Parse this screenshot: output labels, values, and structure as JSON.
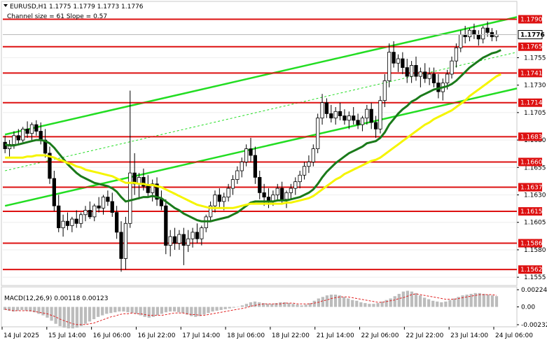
{
  "header": {
    "symbol_line": "EURUSD,H1  1.1775 1.1779 1.1773 1.1776",
    "channel_line": "Channel size = 61 Slope = 0.57"
  },
  "macd": {
    "label": "MACD(12,26,9) 0.00118 0.00123",
    "ticks": [
      {
        "label": "0.00224",
        "value": 0.00224
      },
      {
        "label": "0.00",
        "value": 0.0
      },
      {
        "label": "-0.00232",
        "value": -0.00232
      }
    ],
    "histogram": [
      -0.0004,
      -0.0005,
      -0.0006,
      -0.0005,
      -0.0004,
      -0.0005,
      -0.0006,
      -0.0007,
      -0.0009,
      -0.0011,
      -0.0014,
      -0.0018,
      -0.0022,
      -0.0025,
      -0.0027,
      -0.0028,
      -0.0028,
      -0.0027,
      -0.0025,
      -0.0022,
      -0.0019,
      -0.0016,
      -0.0013,
      -0.0011,
      -0.0009,
      -0.0008,
      -0.0007,
      -0.0006,
      -0.0006,
      -0.0007,
      -0.0008,
      -0.0009,
      -0.0011,
      -0.0013,
      -0.0014,
      -0.0013,
      -0.0011,
      -0.0009,
      -0.0007,
      -0.0006,
      -0.0006,
      -0.0007,
      -0.0008,
      -0.001,
      -0.0012,
      -0.0013,
      -0.0012,
      -0.001,
      -0.0008,
      -0.0006,
      -0.0005,
      -0.0004,
      -0.0003,
      -0.0002,
      -0.0001,
      0.0,
      0.0002,
      0.0004,
      0.0006,
      0.0007,
      0.0006,
      0.0005,
      0.0004,
      0.0004,
      0.0005,
      0.0006,
      0.0006,
      0.0005,
      0.0004,
      0.0003,
      0.0002,
      0.0003,
      0.0005,
      0.0008,
      0.0011,
      0.0013,
      0.0015,
      0.0016,
      0.0016,
      0.0015,
      0.0013,
      0.0011,
      0.0009,
      0.0008,
      0.0006,
      0.0005,
      0.0004,
      0.0004,
      0.0005,
      0.0007,
      0.0009,
      0.0011,
      0.0014,
      0.0017,
      0.002,
      0.0021,
      0.002,
      0.0018,
      0.0015,
      0.0012,
      0.001,
      0.0008,
      0.0007,
      0.0006,
      0.0007,
      0.0009,
      0.0011,
      0.0013,
      0.0015,
      0.0016,
      0.0017,
      0.0018,
      0.0018,
      0.0017,
      0.0016,
      0.0015,
      0.0014
    ],
    "signal": [
      -0.0003,
      -0.0004,
      -0.0005,
      -0.0005,
      -0.0005,
      -0.0005,
      -0.0005,
      -0.0006,
      -0.0007,
      -0.0008,
      -0.0009,
      -0.0011,
      -0.0013,
      -0.0016,
      -0.0018,
      -0.002,
      -0.0022,
      -0.0023,
      -0.0023,
      -0.0023,
      -0.0022,
      -0.0021,
      -0.0019,
      -0.0017,
      -0.0015,
      -0.0013,
      -0.0012,
      -0.001,
      -0.0009,
      -0.0009,
      -0.0008,
      -0.0009,
      -0.0009,
      -0.001,
      -0.0011,
      -0.0011,
      -0.0011,
      -0.0011,
      -0.001,
      -0.0009,
      -0.0008,
      -0.0008,
      -0.0008,
      -0.0009,
      -0.001,
      -0.001,
      -0.0011,
      -0.0011,
      -0.001,
      -0.0009,
      -0.0008,
      -0.0007,
      -0.0006,
      -0.0005,
      -0.0004,
      -0.0003,
      -0.0002,
      -0.0001,
      0.0001,
      0.0002,
      0.0003,
      0.0004,
      0.0004,
      0.0004,
      0.0004,
      0.0004,
      0.0005,
      0.0005,
      0.0005,
      0.0004,
      0.0004,
      0.0004,
      0.0004,
      0.0005,
      0.0006,
      0.0008,
      0.0009,
      0.0011,
      0.0012,
      0.0013,
      0.0013,
      0.0013,
      0.0012,
      0.0011,
      0.001,
      0.0009,
      0.0008,
      0.0007,
      0.0006,
      0.0006,
      0.0007,
      0.0008,
      0.0009,
      0.0011,
      0.0012,
      0.0014,
      0.0016,
      0.0017,
      0.0016,
      0.0015,
      0.0014,
      0.0013,
      0.0012,
      0.0011,
      0.001,
      0.001,
      0.001,
      0.0011,
      0.0012,
      0.0013,
      0.0014,
      0.0015,
      0.0016,
      0.0016,
      0.0016,
      0.0016,
      0.0015
    ]
  },
  "chart_data": {
    "type": "line",
    "title": "EURUSD,H1",
    "ylim": [
      1.155,
      1.1805
    ],
    "y_ticks": [
      "1.1755",
      "1.1730",
      "1.1705",
      "1.1680",
      "1.1655",
      "1.1630",
      "1.1605",
      "1.1580",
      "1.1555"
    ],
    "current_price_label": "1.1776",
    "current_price": 1.1776,
    "levels": [
      {
        "label": "1.1790",
        "value": 1.179
      },
      {
        "label": "1.1765",
        "value": 1.1765
      },
      {
        "label": "1.1741",
        "value": 1.1741
      },
      {
        "label": "1.1714",
        "value": 1.1714
      },
      {
        "label": "1.1683",
        "value": 1.1683
      },
      {
        "label": "1.1660",
        "value": 1.166
      },
      {
        "label": "1.1637",
        "value": 1.1637
      },
      {
        "label": "1.1615",
        "value": 1.1615
      },
      {
        "label": "1.1586",
        "value": 1.1586
      },
      {
        "label": "1.1562",
        "value": 1.1562
      }
    ],
    "x_labels": [
      "14 Jul 2025",
      "15 Jul 14:00",
      "16 Jul 06:00",
      "16 Jul 22:00",
      "17 Jul 14:00",
      "18 Jul 06:00",
      "18 Jul 22:00",
      "21 Jul 14:00",
      "22 Jul 06:00",
      "22 Jul 22:00",
      "23 Jul 14:00",
      "24 Jul 06:00"
    ],
    "channel": [
      {
        "name": "channel-upper",
        "start": [
          0,
          1.1685
        ],
        "end": [
          121,
          1.1792
        ]
      },
      {
        "name": "channel-lower",
        "start": [
          0,
          1.162
        ],
        "end": [
          121,
          1.1727
        ]
      },
      {
        "name": "channel-mid",
        "start": [
          0,
          1.1652
        ],
        "end": [
          121,
          1.176
        ]
      }
    ],
    "candles": [
      [
        1.1678,
        1.1684,
        1.1668,
        1.1672
      ],
      [
        1.1672,
        1.168,
        1.1665,
        1.1676
      ],
      [
        1.1676,
        1.1688,
        1.1672,
        1.1684
      ],
      [
        1.1684,
        1.169,
        1.1676,
        1.168
      ],
      [
        1.168,
        1.1692,
        1.1678,
        1.169
      ],
      [
        1.169,
        1.1697,
        1.1682,
        1.1686
      ],
      [
        1.1686,
        1.1696,
        1.168,
        1.1694
      ],
      [
        1.1694,
        1.1698,
        1.1684,
        1.1688
      ],
      [
        1.1688,
        1.1696,
        1.1676,
        1.168
      ],
      [
        1.168,
        1.169,
        1.1664,
        1.1668
      ],
      [
        1.1668,
        1.1674,
        1.164,
        1.1645
      ],
      [
        1.1645,
        1.1652,
        1.1615,
        1.162
      ],
      [
        1.162,
        1.163,
        1.1596,
        1.16
      ],
      [
        1.16,
        1.1612,
        1.1592,
        1.1606
      ],
      [
        1.1606,
        1.1614,
        1.1598,
        1.1602
      ],
      [
        1.1602,
        1.161,
        1.1596,
        1.1608
      ],
      [
        1.1608,
        1.1616,
        1.16,
        1.1604
      ],
      [
        1.1604,
        1.1614,
        1.16,
        1.1612
      ],
      [
        1.1612,
        1.162,
        1.1606,
        1.1616
      ],
      [
        1.1616,
        1.1624,
        1.1608,
        1.161
      ],
      [
        1.161,
        1.1622,
        1.1606,
        1.162
      ],
      [
        1.162,
        1.1628,
        1.1614,
        1.1618
      ],
      [
        1.1618,
        1.163,
        1.1612,
        1.1628
      ],
      [
        1.1628,
        1.1634,
        1.162,
        1.1624
      ],
      [
        1.1624,
        1.1632,
        1.161,
        1.1614
      ],
      [
        1.1614,
        1.162,
        1.159,
        1.1596
      ],
      [
        1.1596,
        1.1606,
        1.156,
        1.1572
      ],
      [
        1.1572,
        1.161,
        1.1562,
        1.1604
      ],
      [
        1.1604,
        1.1725,
        1.16,
        1.165
      ],
      [
        1.165,
        1.1668,
        1.163,
        1.164
      ],
      [
        1.164,
        1.165,
        1.1626,
        1.1646
      ],
      [
        1.1646,
        1.1654,
        1.1634,
        1.1638
      ],
      [
        1.1638,
        1.1648,
        1.1628,
        1.1632
      ],
      [
        1.1632,
        1.1644,
        1.1624,
        1.164
      ],
      [
        1.164,
        1.1646,
        1.162,
        1.1626
      ],
      [
        1.1626,
        1.1634,
        1.1616,
        1.162
      ],
      [
        1.162,
        1.1626,
        1.1576,
        1.1584
      ],
      [
        1.1584,
        1.1598,
        1.1574,
        1.1592
      ],
      [
        1.1592,
        1.16,
        1.158,
        1.1586
      ],
      [
        1.1586,
        1.1598,
        1.158,
        1.1594
      ],
      [
        1.1594,
        1.16,
        1.1566,
        1.1584
      ],
      [
        1.1584,
        1.1598,
        1.1578,
        1.159
      ],
      [
        1.159,
        1.16,
        1.1582,
        1.1596
      ],
      [
        1.1596,
        1.1604,
        1.1586,
        1.159
      ],
      [
        1.159,
        1.1602,
        1.1584,
        1.16
      ],
      [
        1.16,
        1.1612,
        1.1596,
        1.161
      ],
      [
        1.161,
        1.1624,
        1.1606,
        1.162
      ],
      [
        1.162,
        1.1634,
        1.1614,
        1.163
      ],
      [
        1.163,
        1.1636,
        1.1618,
        1.1624
      ],
      [
        1.1624,
        1.1632,
        1.1616,
        1.1628
      ],
      [
        1.1628,
        1.164,
        1.1624,
        1.1636
      ],
      [
        1.1636,
        1.1648,
        1.163,
        1.1644
      ],
      [
        1.1644,
        1.1656,
        1.164,
        1.1652
      ],
      [
        1.1652,
        1.1664,
        1.1646,
        1.166
      ],
      [
        1.166,
        1.1676,
        1.1656,
        1.1672
      ],
      [
        1.1672,
        1.1682,
        1.166,
        1.1666
      ],
      [
        1.1666,
        1.1674,
        1.164,
        1.1646
      ],
      [
        1.1646,
        1.1652,
        1.1626,
        1.1632
      ],
      [
        1.1632,
        1.164,
        1.162,
        1.1628
      ],
      [
        1.1628,
        1.1636,
        1.1618,
        1.1624
      ],
      [
        1.1624,
        1.1634,
        1.162,
        1.163
      ],
      [
        1.163,
        1.164,
        1.1624,
        1.1636
      ],
      [
        1.1636,
        1.1642,
        1.1622,
        1.1626
      ],
      [
        1.1626,
        1.1634,
        1.1618,
        1.1632
      ],
      [
        1.1632,
        1.164,
        1.1626,
        1.1636
      ],
      [
        1.1636,
        1.1646,
        1.163,
        1.1642
      ],
      [
        1.1642,
        1.1652,
        1.1636,
        1.1648
      ],
      [
        1.1648,
        1.166,
        1.1644,
        1.1656
      ],
      [
        1.1656,
        1.1666,
        1.165,
        1.166
      ],
      [
        1.166,
        1.1676,
        1.1656,
        1.1672
      ],
      [
        1.1672,
        1.1704,
        1.1668,
        1.17
      ],
      [
        1.17,
        1.1722,
        1.1694,
        1.1714
      ],
      [
        1.1714,
        1.1718,
        1.17,
        1.1704
      ],
      [
        1.1704,
        1.1712,
        1.1696,
        1.17
      ],
      [
        1.17,
        1.171,
        1.1694,
        1.1706
      ],
      [
        1.1706,
        1.1714,
        1.1698,
        1.1702
      ],
      [
        1.1702,
        1.1708,
        1.1694,
        1.1698
      ],
      [
        1.1698,
        1.1706,
        1.169,
        1.1702
      ],
      [
        1.1702,
        1.171,
        1.1694,
        1.1698
      ],
      [
        1.1698,
        1.1704,
        1.169,
        1.1694
      ],
      [
        1.1694,
        1.1702,
        1.1688,
        1.17
      ],
      [
        1.17,
        1.1712,
        1.1694,
        1.1708
      ],
      [
        1.1708,
        1.1714,
        1.169,
        1.1696
      ],
      [
        1.1696,
        1.1702,
        1.1682,
        1.169
      ],
      [
        1.169,
        1.172,
        1.1686,
        1.1716
      ],
      [
        1.1716,
        1.174,
        1.171,
        1.1734
      ],
      [
        1.1734,
        1.1768,
        1.1728,
        1.176
      ],
      [
        1.176,
        1.177,
        1.1746,
        1.175
      ],
      [
        1.175,
        1.1758,
        1.1742,
        1.1754
      ],
      [
        1.1754,
        1.176,
        1.174,
        1.1746
      ],
      [
        1.1746,
        1.1754,
        1.1732,
        1.1738
      ],
      [
        1.1738,
        1.1752,
        1.1732,
        1.1748
      ],
      [
        1.1748,
        1.1756,
        1.1734,
        1.1738
      ],
      [
        1.1738,
        1.1746,
        1.1728,
        1.1742
      ],
      [
        1.1742,
        1.175,
        1.1732,
        1.1736
      ],
      [
        1.1736,
        1.1746,
        1.173,
        1.174
      ],
      [
        1.174,
        1.1746,
        1.1728,
        1.1732
      ],
      [
        1.1732,
        1.174,
        1.1718,
        1.1724
      ],
      [
        1.1724,
        1.1736,
        1.1716,
        1.1732
      ],
      [
        1.1732,
        1.1744,
        1.1726,
        1.174
      ],
      [
        1.174,
        1.1756,
        1.1736,
        1.1752
      ],
      [
        1.1752,
        1.1768,
        1.1746,
        1.1764
      ],
      [
        1.1764,
        1.178,
        1.176,
        1.1776
      ],
      [
        1.1776,
        1.1784,
        1.1768,
        1.1774
      ],
      [
        1.1774,
        1.1782,
        1.177,
        1.178
      ],
      [
        1.178,
        1.1786,
        1.1772,
        1.1776
      ],
      [
        1.1776,
        1.178,
        1.1766,
        1.1772
      ],
      [
        1.1772,
        1.1784,
        1.1768,
        1.1782
      ],
      [
        1.1782,
        1.1788,
        1.1774,
        1.1778
      ],
      [
        1.1778,
        1.1782,
        1.177,
        1.1774
      ],
      [
        1.1774,
        1.178,
        1.177,
        1.1776
      ]
    ],
    "series": [
      {
        "color": "#1a7a1a",
        "values": [
          1.1676,
          1.1675,
          1.1675,
          1.1676,
          1.1677,
          1.1678,
          1.1679,
          1.168,
          1.168,
          1.1679,
          1.1677,
          1.1673,
          1.1668,
          1.1663,
          1.1658,
          1.1654,
          1.165,
          1.1647,
          1.1645,
          1.1643,
          1.1641,
          1.164,
          1.1639,
          1.1638,
          1.1636,
          1.1633,
          1.1628,
          1.1624,
          1.1625,
          1.1626,
          1.1627,
          1.1628,
          1.1628,
          1.1629,
          1.1628,
          1.1627,
          1.1624,
          1.1621,
          1.1618,
          1.1616,
          1.1613,
          1.1611,
          1.1609,
          1.1607,
          1.1606,
          1.1606,
          1.1606,
          1.1607,
          1.1608,
          1.1609,
          1.161,
          1.1612,
          1.1614,
          1.1617,
          1.162,
          1.1623,
          1.1624,
          1.1624,
          1.1624,
          1.1624,
          1.1624,
          1.1625,
          1.1625,
          1.1625,
          1.1626,
          1.1627,
          1.1628,
          1.163,
          1.1632,
          1.1635,
          1.164,
          1.1646,
          1.1651,
          1.1655,
          1.1659,
          1.1662,
          1.1665,
          1.1668,
          1.167,
          1.1672,
          1.1674,
          1.1677,
          1.1678,
          1.1679,
          1.1682,
          1.1687,
          1.1694,
          1.1699,
          1.1704,
          1.1708,
          1.1711,
          1.1715,
          1.1717,
          1.172,
          1.1722,
          1.1724,
          1.1726,
          1.1727,
          1.1728,
          1.1729,
          1.1731,
          1.1734,
          1.1738,
          1.1742,
          1.1746,
          1.1749,
          1.1752,
          1.1755,
          1.1757,
          1.1759,
          1.176,
          1.1762
        ]
      },
      {
        "color": "#f5f500",
        "values": [
          1.1664,
          1.1664,
          1.1664,
          1.1664,
          1.1664,
          1.1665,
          1.1665,
          1.1666,
          1.1666,
          1.1666,
          1.1665,
          1.1664,
          1.1662,
          1.1661,
          1.1659,
          1.1658,
          1.1656,
          1.1655,
          1.1653,
          1.1652,
          1.1651,
          1.165,
          1.1649,
          1.1648,
          1.1647,
          1.1645,
          1.1643,
          1.1641,
          1.1641,
          1.1641,
          1.164,
          1.164,
          1.1639,
          1.1639,
          1.1638,
          1.1637,
          1.1635,
          1.1633,
          1.1631,
          1.1629,
          1.1627,
          1.1625,
          1.1623,
          1.1621,
          1.162,
          1.1619,
          1.1618,
          1.1618,
          1.1618,
          1.1618,
          1.1618,
          1.1618,
          1.1619,
          1.162,
          1.1621,
          1.1622,
          1.1622,
          1.1622,
          1.1622,
          1.1622,
          1.1622,
          1.1622,
          1.1622,
          1.1623,
          1.1623,
          1.1624,
          1.1625,
          1.1626,
          1.1627,
          1.1629,
          1.1632,
          1.1635,
          1.1638,
          1.1641,
          1.1644,
          1.1646,
          1.1649,
          1.1651,
          1.1653,
          1.1655,
          1.1657,
          1.1659,
          1.1661,
          1.1662,
          1.1664,
          1.1667,
          1.167,
          1.1673,
          1.1676,
          1.1679,
          1.1682,
          1.1685,
          1.1688,
          1.1691,
          1.1694,
          1.1696,
          1.1699,
          1.1701,
          1.1703,
          1.1705,
          1.1707,
          1.171,
          1.1713,
          1.1716,
          1.172,
          1.1723,
          1.1726,
          1.1729,
          1.1732,
          1.1735,
          1.1738,
          1.174
        ]
      }
    ]
  }
}
